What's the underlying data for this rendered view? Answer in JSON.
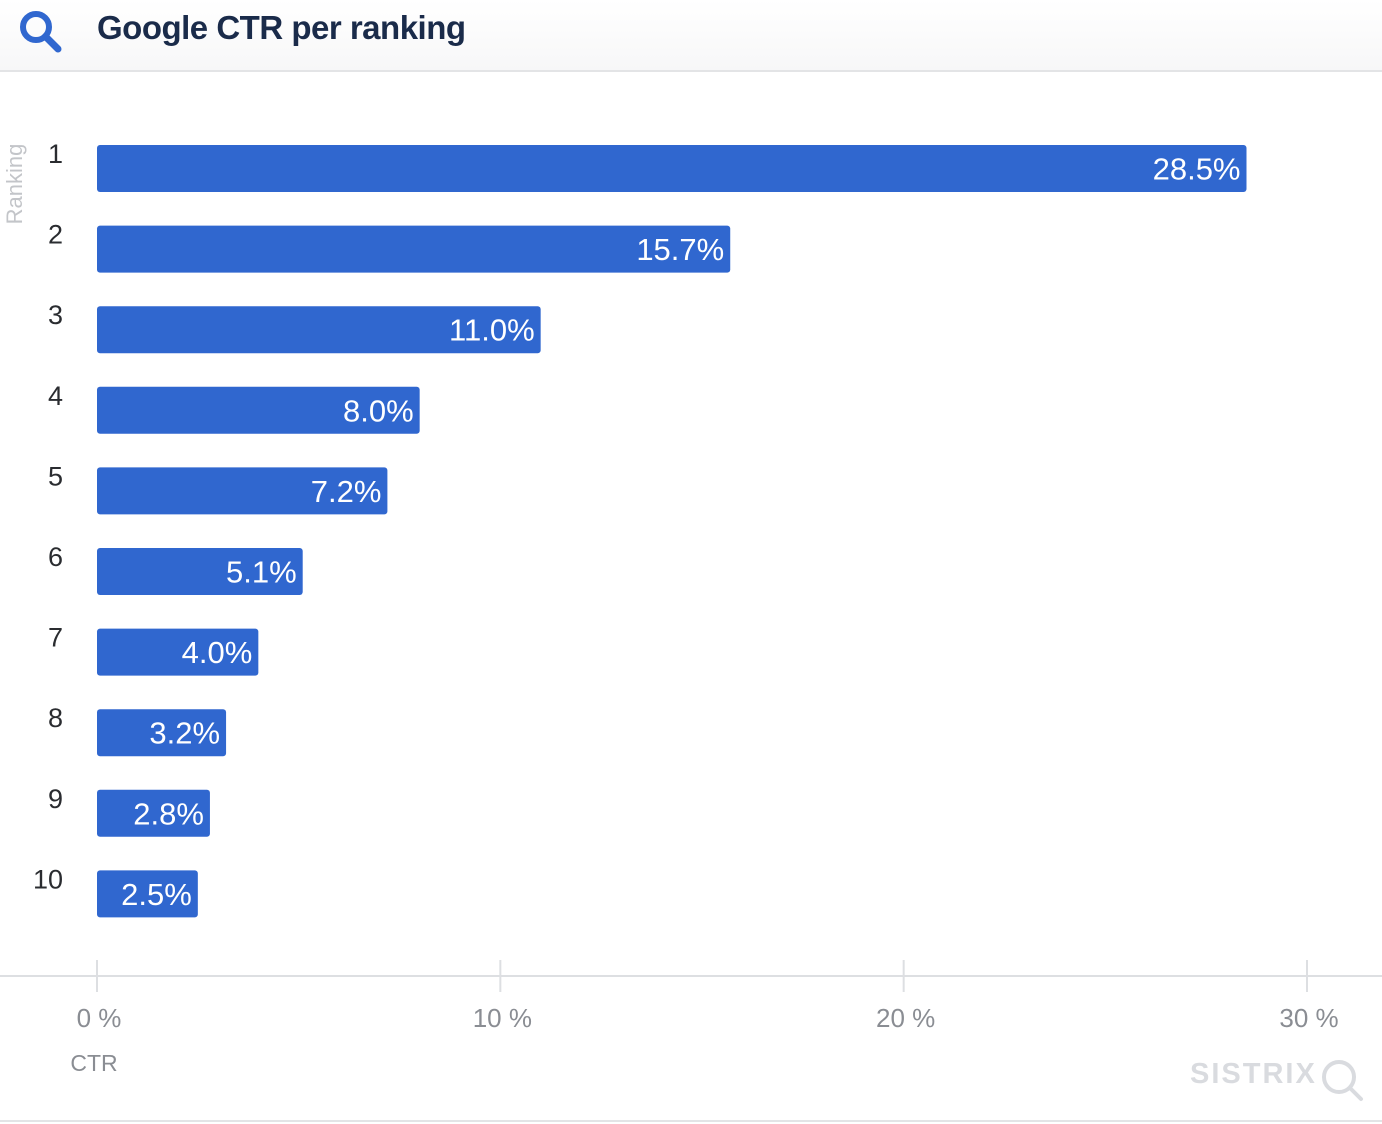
{
  "header": {
    "title": "Google CTR per ranking",
    "icon": "search-icon"
  },
  "colors": {
    "bar": "#3067cf",
    "title": "#1a2b4a",
    "axis_text": "#8a8d93",
    "grid": "#dddfe2",
    "brand": "#d9dbdf"
  },
  "brand": {
    "name": "SISTRIX",
    "icon": "magnifier-icon"
  },
  "chart_data": {
    "type": "bar",
    "orientation": "horizontal",
    "categories": [
      "1",
      "2",
      "3",
      "4",
      "5",
      "6",
      "7",
      "8",
      "9",
      "10"
    ],
    "values": [
      28.5,
      15.7,
      11.0,
      8.0,
      7.2,
      5.1,
      4.0,
      3.2,
      2.8,
      2.5
    ],
    "data_labels": [
      "28.5%",
      "15.7%",
      "11.0%",
      "8.0%",
      "7.2%",
      "5.1%",
      "4.0%",
      "3.2%",
      "2.8%",
      "2.5%"
    ],
    "xlabel": "CTR",
    "ylabel": "Ranking",
    "xlim": [
      0,
      30
    ],
    "xticks": [
      0,
      10,
      20,
      30
    ],
    "xtick_labels": [
      "0 %",
      "10 %",
      "20 %",
      "30 %"
    ],
    "legend": "none",
    "grid": false
  }
}
